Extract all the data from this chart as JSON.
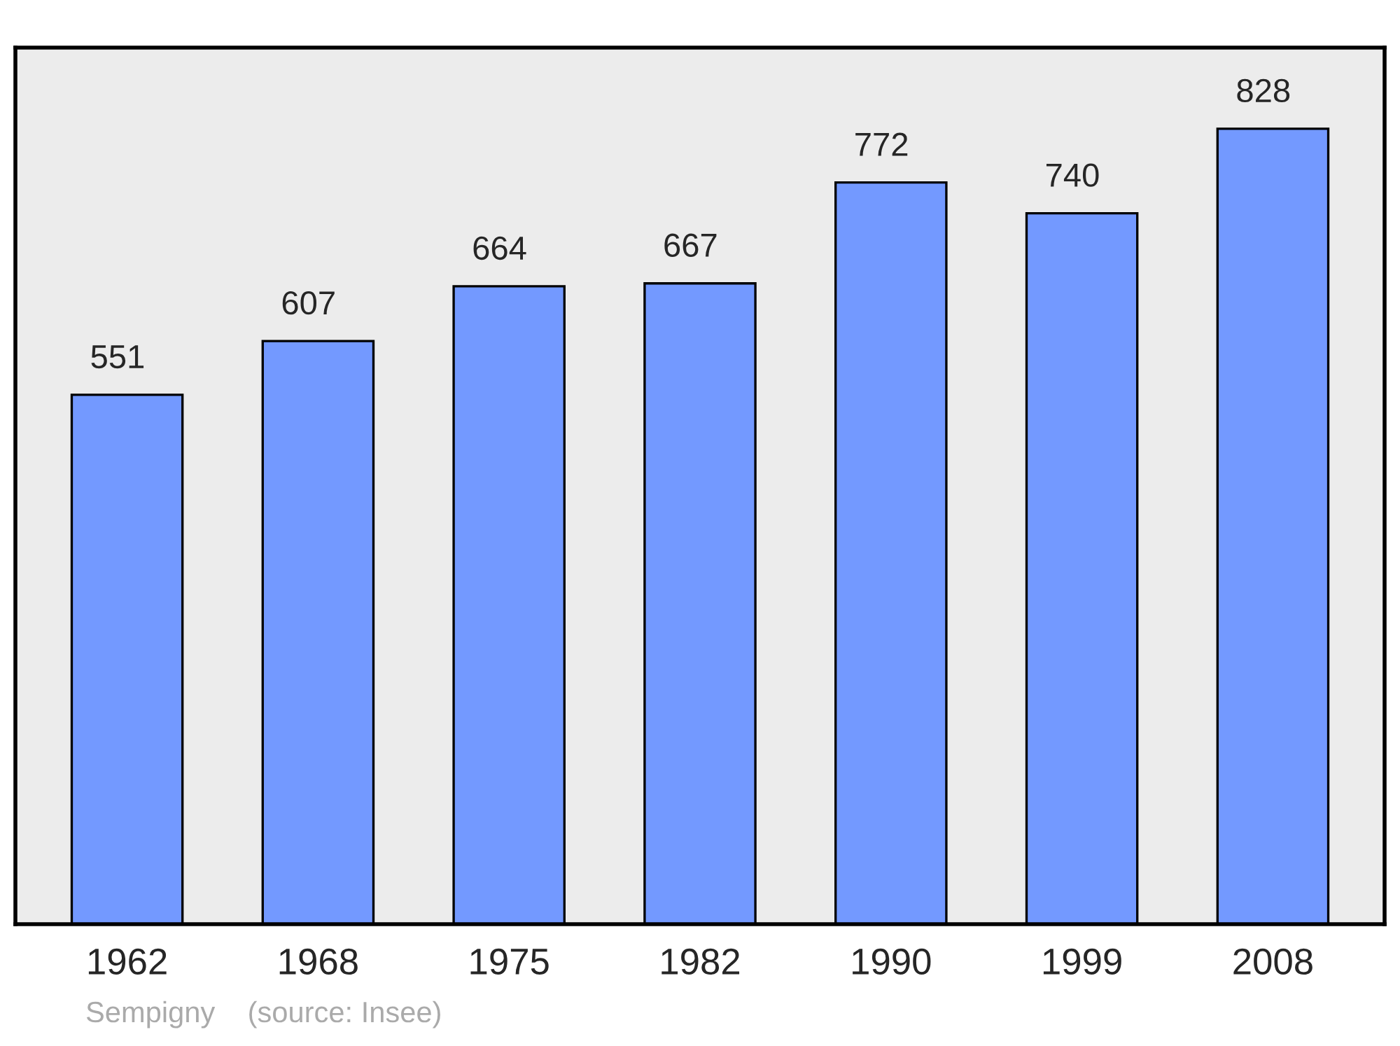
{
  "chart_data": {
    "type": "bar",
    "categories": [
      "1962",
      "1968",
      "1975",
      "1982",
      "1990",
      "1999",
      "2008"
    ],
    "values": [
      551,
      607,
      664,
      667,
      772,
      740,
      828
    ],
    "color": "#7399ff",
    "data_labels": true,
    "grid": false,
    "legend": false,
    "tick_labels": "x",
    "annotations": [
      "Sempigny    (source: Insee)"
    ]
  }
}
